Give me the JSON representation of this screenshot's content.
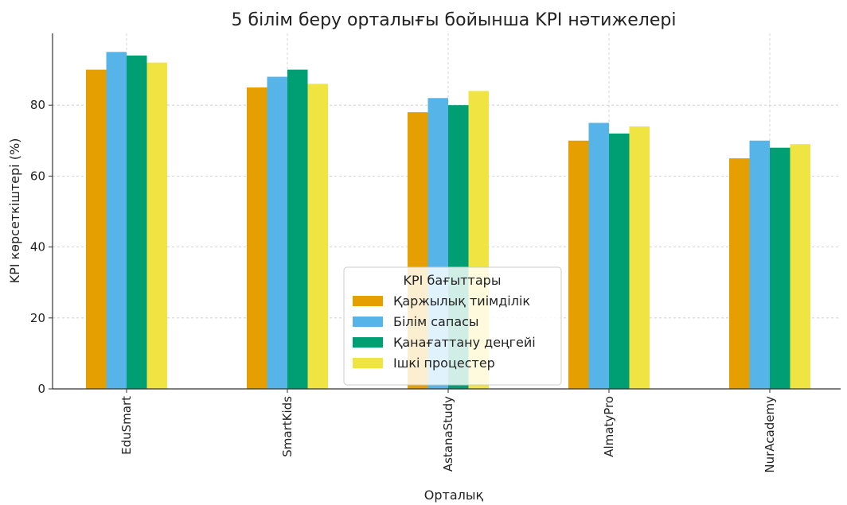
{
  "chart_data": {
    "type": "bar",
    "title": "5 білім беру орталығы бойынша KPI нәтижелері",
    "xlabel": "Орталық",
    "ylabel": "KPI көрсеткіштері (%)",
    "ylim": [
      0,
      100
    ],
    "yticks": [
      0,
      20,
      40,
      60,
      80
    ],
    "grid": true,
    "legend_title": "KPI бағыттары",
    "legend_position": "center-bottom",
    "categories": [
      "EduSmart",
      "SmartKids",
      "AstanaStudy",
      "AlmatyPro",
      "NurAcademy"
    ],
    "series": [
      {
        "name": "Қаржылық тиімділік",
        "color": "#E69F00",
        "values": [
          90,
          85,
          78,
          70,
          65
        ]
      },
      {
        "name": "Білім сапасы",
        "color": "#56B4E9",
        "values": [
          95,
          88,
          82,
          75,
          70
        ]
      },
      {
        "name": "Қанағаттану деңгейі",
        "color": "#009E73",
        "values": [
          94,
          90,
          80,
          72,
          68
        ]
      },
      {
        "name": "Ішкі процестер",
        "color": "#F0E442",
        "values": [
          92,
          86,
          84,
          74,
          69
        ]
      }
    ]
  }
}
